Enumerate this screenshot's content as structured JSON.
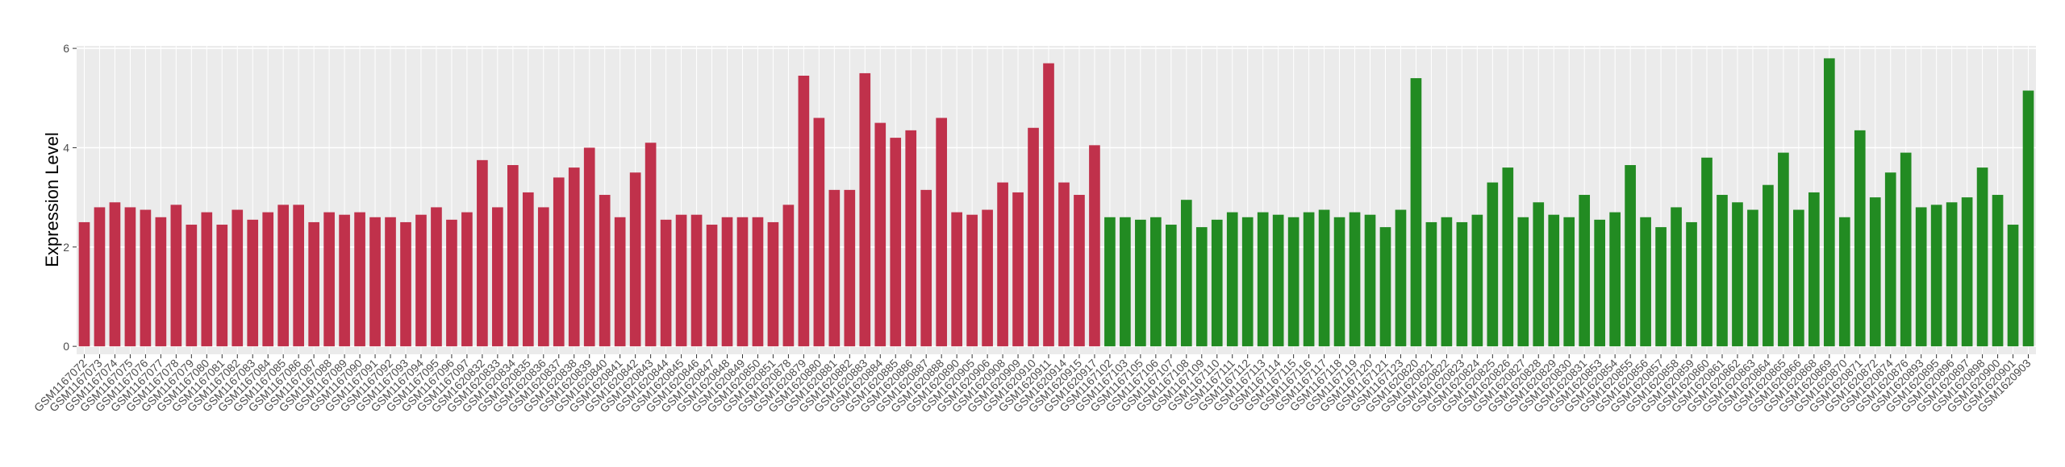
{
  "chart_data": {
    "type": "bar",
    "y_label": "Expression Level",
    "categories": [
      "GSM1167072",
      "GSM1167073",
      "GSM1167074",
      "GSM1167075",
      "GSM1167076",
      "GSM1167077",
      "GSM1167078",
      "GSM1167079",
      "GSM1167080",
      "GSM1167081",
      "GSM1167082",
      "GSM1167083",
      "GSM1167084",
      "GSM1167085",
      "GSM1167086",
      "GSM1167087",
      "GSM1167088",
      "GSM1167089",
      "GSM1167090",
      "GSM1167091",
      "GSM1167092",
      "GSM1167093",
      "GSM1167094",
      "GSM1167095",
      "GSM1167096",
      "GSM1167097",
      "GSM1620832",
      "GSM1620833",
      "GSM1620834",
      "GSM1620835",
      "GSM1620836",
      "GSM1620837",
      "GSM1620838",
      "GSM1620839",
      "GSM1620840",
      "GSM1620841",
      "GSM1620842",
      "GSM1620843",
      "GSM1620844",
      "GSM1620845",
      "GSM1620846",
      "GSM1620847",
      "GSM1620848",
      "GSM1620849",
      "GSM1620850",
      "GSM1620851",
      "GSM1620878",
      "GSM1620879",
      "GSM1620880",
      "GSM1620881",
      "GSM1620882",
      "GSM1620883",
      "GSM1620884",
      "GSM1620885",
      "GSM1620886",
      "GSM1620887",
      "GSM1620888",
      "GSM1620890",
      "GSM1620905",
      "GSM1620906",
      "GSM1620908",
      "GSM1620909",
      "GSM1620910",
      "GSM1620911",
      "GSM1620914",
      "GSM1620915",
      "GSM1620917",
      "GSM1167102",
      "GSM1167103",
      "GSM1167105",
      "GSM1167106",
      "GSM1167107",
      "GSM1167108",
      "GSM1167109",
      "GSM1167110",
      "GSM1167111",
      "GSM1167112",
      "GSM1167113",
      "GSM1167114",
      "GSM1167115",
      "GSM1167116",
      "GSM1167117",
      "GSM1167118",
      "GSM1167119",
      "GSM1167120",
      "GSM1167121",
      "GSM1167123",
      "GSM1620820",
      "GSM1620821",
      "GSM1620822",
      "GSM1620823",
      "GSM1620824",
      "GSM1620825",
      "GSM1620826",
      "GSM1620827",
      "GSM1620828",
      "GSM1620829",
      "GSM1620830",
      "GSM1620831",
      "GSM1620853",
      "GSM1620854",
      "GSM1620855",
      "GSM1620856",
      "GSM1620857",
      "GSM1620858",
      "GSM1620859",
      "GSM1620860",
      "GSM1620861",
      "GSM1620862",
      "GSM1620863",
      "GSM1620864",
      "GSM1620865",
      "GSM1620866",
      "GSM1620868",
      "GSM1620869",
      "GSM1620870",
      "GSM1620871",
      "GSM1620872",
      "GSM1620874",
      "GSM1620876",
      "GSM1620893",
      "GSM1620895",
      "GSM1620896",
      "GSM1620897",
      "GSM1620898",
      "GSM1620900",
      "GSM1620901",
      "GSM1620903"
    ],
    "values": [
      2.5,
      2.8,
      2.9,
      2.8,
      2.75,
      2.6,
      2.85,
      2.45,
      2.7,
      2.45,
      2.75,
      2.55,
      2.7,
      2.85,
      2.85,
      2.5,
      2.7,
      2.65,
      2.7,
      2.6,
      2.6,
      2.5,
      2.65,
      2.8,
      2.55,
      2.7,
      3.75,
      2.8,
      3.65,
      3.1,
      2.8,
      3.4,
      3.6,
      4.0,
      3.05,
      2.6,
      3.5,
      4.1,
      2.55,
      2.65,
      2.65,
      2.45,
      2.6,
      2.6,
      2.6,
      2.5,
      2.85,
      5.45,
      4.6,
      3.15,
      3.15,
      5.5,
      4.5,
      4.2,
      4.35,
      3.15,
      4.6,
      2.7,
      2.65,
      2.75,
      3.3,
      3.1,
      4.4,
      5.7,
      3.3,
      3.05,
      4.05,
      2.6,
      2.6,
      2.55,
      2.6,
      2.45,
      2.95,
      2.4,
      2.55,
      2.7,
      2.6,
      2.7,
      2.65,
      2.6,
      2.7,
      2.75,
      2.6,
      2.7,
      2.65,
      2.4,
      2.75,
      5.4,
      2.5,
      2.6,
      2.5,
      2.65,
      3.3,
      3.6,
      2.6,
      2.9,
      2.65,
      2.6,
      3.05,
      2.55,
      2.7,
      3.65,
      2.6,
      2.4,
      2.8,
      2.5,
      3.8,
      3.05,
      2.9,
      2.75,
      3.25,
      3.9,
      2.75,
      3.1,
      5.8,
      2.6,
      4.35,
      3.0,
      3.5,
      3.9,
      2.8,
      2.85,
      2.9,
      3.0,
      3.6,
      3.05,
      2.45,
      5.15
    ],
    "colors": [
      "#c0314b",
      "#c0314b",
      "#c0314b",
      "#c0314b",
      "#c0314b",
      "#c0314b",
      "#c0314b",
      "#c0314b",
      "#c0314b",
      "#c0314b",
      "#c0314b",
      "#c0314b",
      "#c0314b",
      "#c0314b",
      "#c0314b",
      "#c0314b",
      "#c0314b",
      "#c0314b",
      "#c0314b",
      "#c0314b",
      "#c0314b",
      "#c0314b",
      "#c0314b",
      "#c0314b",
      "#c0314b",
      "#c0314b",
      "#c0314b",
      "#c0314b",
      "#c0314b",
      "#c0314b",
      "#c0314b",
      "#c0314b",
      "#c0314b",
      "#c0314b",
      "#c0314b",
      "#c0314b",
      "#c0314b",
      "#c0314b",
      "#c0314b",
      "#c0314b",
      "#c0314b",
      "#c0314b",
      "#c0314b",
      "#c0314b",
      "#c0314b",
      "#c0314b",
      "#c0314b",
      "#c0314b",
      "#c0314b",
      "#c0314b",
      "#c0314b",
      "#c0314b",
      "#c0314b",
      "#c0314b",
      "#c0314b",
      "#c0314b",
      "#c0314b",
      "#c0314b",
      "#c0314b",
      "#c0314b",
      "#c0314b",
      "#c0314b",
      "#c0314b",
      "#c0314b",
      "#c0314b",
      "#c0314b",
      "#c0314b",
      "#228b22",
      "#228b22",
      "#228b22",
      "#228b22",
      "#228b22",
      "#228b22",
      "#228b22",
      "#228b22",
      "#228b22",
      "#228b22",
      "#228b22",
      "#228b22",
      "#228b22",
      "#228b22",
      "#228b22",
      "#228b22",
      "#228b22",
      "#228b22",
      "#228b22",
      "#228b22",
      "#228b22",
      "#228b22",
      "#228b22",
      "#228b22",
      "#228b22",
      "#228b22",
      "#228b22",
      "#228b22",
      "#228b22",
      "#228b22",
      "#228b22",
      "#228b22",
      "#228b22",
      "#228b22",
      "#228b22",
      "#228b22",
      "#228b22",
      "#228b22",
      "#228b22",
      "#228b22",
      "#228b22",
      "#228b22",
      "#228b22",
      "#228b22",
      "#228b22",
      "#228b22",
      "#228b22",
      "#228b22",
      "#228b22",
      "#228b22",
      "#228b22",
      "#228b22",
      "#228b22",
      "#228b22",
      "#228b22",
      "#228b22",
      "#228b22",
      "#228b22",
      "#228b22",
      "#228b22",
      "#228b22"
    ],
    "ylim": [
      -0.16,
      6.05
    ],
    "yticks": [
      0,
      2,
      4,
      6
    ],
    "grid": true
  }
}
